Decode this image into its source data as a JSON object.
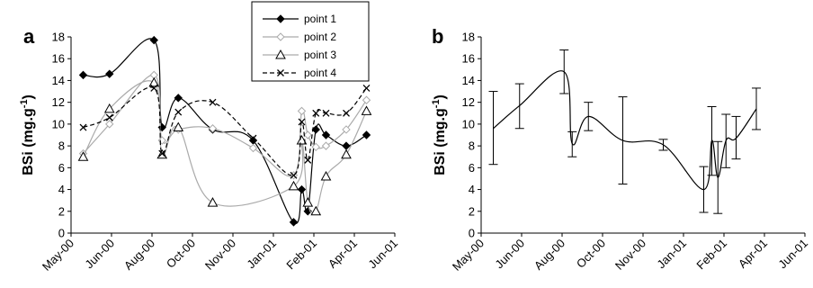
{
  "chart_data": [
    {
      "type": "line",
      "panel_label": "a",
      "ylabel": "BSi (mg.g",
      "ylabel_sup": "-1",
      "ylabel_end": ")",
      "ylim": [
        0,
        18
      ],
      "yticks": [
        "0",
        "2",
        "4",
        "6",
        "8",
        "10",
        "12",
        "14",
        "16",
        "18"
      ],
      "xticks": [
        "May-00",
        "Jun-00",
        "Aug-00",
        "Oct-00",
        "Nov-00",
        "Jan-01",
        "Feb-01",
        "Apr-01",
        "Jun-01"
      ],
      "legend_position": "top-center",
      "series": [
        {
          "name": "point 1",
          "marker": "diamond-filled",
          "color": "#000000",
          "dash": "solid",
          "x": [
            0.3,
            0.95,
            2.05,
            2.25,
            2.65,
            3.5,
            4.5,
            5.5,
            5.7,
            5.85,
            6.05,
            6.3,
            6.8,
            7.3
          ],
          "y": [
            14.5,
            14.6,
            17.7,
            9.7,
            12.4,
            9.5,
            8.5,
            1.0,
            4.0,
            2.0,
            9.5,
            9.0,
            8.0,
            9.0
          ]
        },
        {
          "name": "point 2",
          "marker": "diamond-open",
          "color": "#aaaaaa",
          "dash": "solid",
          "x": [
            0.3,
            0.95,
            2.05,
            2.25,
            2.65,
            3.5,
            4.5,
            5.5,
            5.7,
            5.85,
            6.05,
            6.3,
            6.8,
            7.3
          ],
          "y": [
            7.3,
            10.0,
            14.5,
            8.5,
            9.5,
            9.6,
            7.8,
            5.3,
            11.2,
            9.0,
            7.9,
            8.0,
            9.5,
            12.2
          ]
        },
        {
          "name": "point 3",
          "marker": "triangle-open",
          "color": "#aaaaaa",
          "dash": "solid",
          "x": [
            0.3,
            0.95,
            2.05,
            2.25,
            2.65,
            3.5,
            5.5,
            5.7,
            5.85,
            6.05,
            6.3,
            6.8,
            7.3
          ],
          "y": [
            7.0,
            11.4,
            13.8,
            7.2,
            9.7,
            2.8,
            4.3,
            8.5,
            2.8,
            2.0,
            5.2,
            7.2,
            11.2
          ]
        },
        {
          "name": "point 4",
          "marker": "x",
          "color": "#000000",
          "dash": "dashed",
          "x": [
            0.3,
            0.95,
            2.05,
            2.25,
            2.65,
            3.5,
            4.5,
            5.5,
            5.7,
            5.85,
            6.05,
            6.3,
            6.8,
            7.3
          ],
          "y": [
            9.7,
            10.6,
            13.3,
            7.3,
            11.1,
            12.0,
            8.7,
            5.3,
            10.2,
            6.7,
            11.0,
            11.0,
            11.0,
            13.3
          ]
        }
      ]
    },
    {
      "type": "line",
      "panel_label": "b",
      "ylabel": "BSi (mg.g",
      "ylabel_sup": "-1",
      "ylabel_end": ")",
      "ylim": [
        0,
        18
      ],
      "yticks": [
        "0",
        "2",
        "4",
        "6",
        "8",
        "10",
        "12",
        "14",
        "16",
        "18"
      ],
      "xticks": [
        "May-00",
        "Jun-00",
        "Aug-00",
        "Oct-00",
        "Nov-00",
        "Jan-01",
        "Feb-01",
        "Apr-01",
        "Jun-01"
      ],
      "error_bars": true,
      "series": [
        {
          "color": "#000000",
          "x": [
            0.3,
            0.95,
            2.05,
            2.25,
            2.65,
            3.5,
            4.5,
            5.5,
            5.7,
            5.85,
            6.05,
            6.3,
            6.8
          ],
          "y": [
            9.6,
            11.7,
            14.8,
            8.2,
            10.7,
            8.5,
            8.1,
            4.0,
            8.5,
            5.1,
            8.5,
            8.7,
            11.4
          ],
          "err_low": [
            6.3,
            9.6,
            12.8,
            7.0,
            9.4,
            4.5,
            7.6,
            1.9,
            5.3,
            1.8,
            6.0,
            6.8,
            9.5
          ],
          "err_high": [
            13.0,
            13.7,
            16.8,
            9.3,
            12.0,
            12.5,
            8.6,
            6.1,
            11.6,
            8.4,
            10.9,
            10.7,
            13.3
          ]
        }
      ]
    }
  ]
}
